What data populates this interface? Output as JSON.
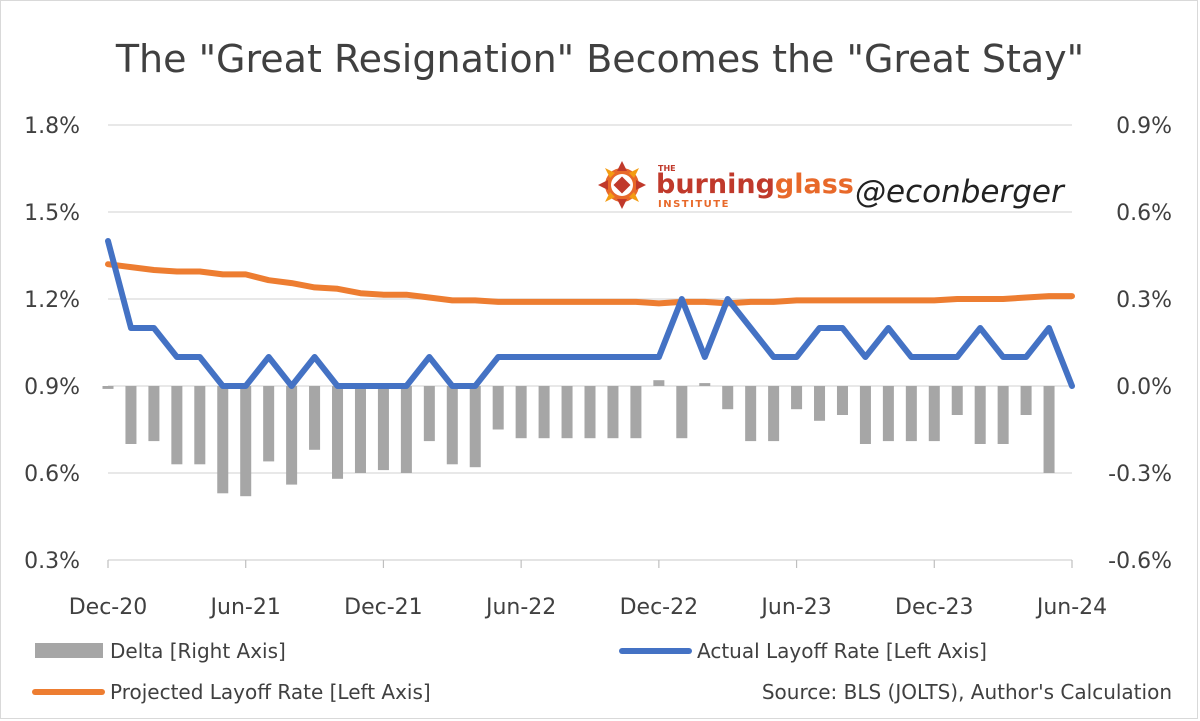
{
  "chart_data": {
    "type": "bar+line",
    "title": "The \"Great Resignation\" Becomes the \"Great Stay\"",
    "x_tick_labels": [
      "Dec-20",
      "Jun-21",
      "Dec-21",
      "Jun-22",
      "Dec-22",
      "Jun-23",
      "Dec-23",
      "Jun-24"
    ],
    "left_axis": {
      "ticks": [
        "0.3%",
        "0.6%",
        "0.9%",
        "1.2%",
        "1.5%",
        "1.8%"
      ],
      "ylim": [
        0.3,
        1.8
      ],
      "unit": "%"
    },
    "right_axis": {
      "ticks": [
        "-0.6%",
        "-0.3%",
        "0.0%",
        "0.3%",
        "0.6%",
        "0.9%"
      ],
      "ylim": [
        -0.6,
        0.9
      ],
      "unit": "%"
    },
    "x": [
      "Dec-20",
      "Jan-21",
      "Feb-21",
      "Mar-21",
      "Apr-21",
      "May-21",
      "Jun-21",
      "Jul-21",
      "Aug-21",
      "Sep-21",
      "Oct-21",
      "Nov-21",
      "Dec-21",
      "Jan-22",
      "Feb-22",
      "Mar-22",
      "Apr-22",
      "May-22",
      "Jun-22",
      "Jul-22",
      "Aug-22",
      "Sep-22",
      "Oct-22",
      "Nov-22",
      "Dec-22",
      "Jan-23",
      "Feb-23",
      "Mar-23",
      "Apr-23",
      "May-23",
      "Jun-23",
      "Jul-23",
      "Aug-23",
      "Sep-23",
      "Oct-23",
      "Nov-23",
      "Dec-23",
      "Jan-24",
      "Feb-24",
      "Mar-24",
      "Apr-24",
      "May-24",
      "Jun-24"
    ],
    "series": [
      {
        "name": "Delta [Right Axis]",
        "axis": "right",
        "type": "bar",
        "color": "#a6a6a6",
        "values": [
          -0.01,
          -0.2,
          -0.19,
          -0.27,
          -0.27,
          -0.37,
          -0.38,
          -0.26,
          -0.34,
          -0.22,
          -0.32,
          -0.3,
          -0.29,
          -0.3,
          -0.19,
          -0.27,
          -0.28,
          -0.15,
          -0.18,
          -0.18,
          -0.18,
          -0.18,
          -0.18,
          -0.18,
          0.02,
          -0.18,
          0.01,
          -0.08,
          -0.19,
          -0.19,
          -0.08,
          -0.12,
          -0.1,
          -0.2,
          -0.19,
          -0.19,
          -0.19,
          -0.1,
          -0.2,
          -0.2,
          -0.1,
          -0.3,
          0
        ]
      },
      {
        "name": "Actual Layoff Rate [Left Axis]",
        "axis": "left",
        "type": "line",
        "color": "#4472c4",
        "values": [
          1.4,
          1.1,
          1.1,
          1.0,
          1.0,
          0.9,
          0.9,
          1.0,
          0.9,
          1.0,
          0.9,
          0.9,
          0.9,
          0.9,
          1.0,
          0.9,
          0.9,
          1.0,
          1.0,
          1.0,
          1.0,
          1.0,
          1.0,
          1.0,
          1.0,
          1.2,
          1.0,
          1.2,
          1.1,
          1.0,
          1.0,
          1.1,
          1.1,
          1.0,
          1.1,
          1.0,
          1.0,
          1.0,
          1.1,
          1.0,
          1.0,
          1.1,
          0.9
        ]
      },
      {
        "name": "Projected Layoff Rate [Left Axis]",
        "axis": "left",
        "type": "line",
        "color": "#ed7d31",
        "values": [
          1.32,
          1.31,
          1.3,
          1.295,
          1.295,
          1.285,
          1.285,
          1.265,
          1.255,
          1.24,
          1.235,
          1.22,
          1.215,
          1.215,
          1.205,
          1.195,
          1.195,
          1.19,
          1.19,
          1.19,
          1.19,
          1.19,
          1.19,
          1.19,
          1.185,
          1.19,
          1.19,
          1.185,
          1.19,
          1.19,
          1.195,
          1.195,
          1.195,
          1.195,
          1.195,
          1.195,
          1.195,
          1.2,
          1.2,
          1.2,
          1.205,
          1.21,
          1.21
        ]
      }
    ],
    "legend": [
      {
        "label": "Delta [Right Axis]",
        "kind": "bar",
        "color": "#a6a6a6"
      },
      {
        "label": "Actual Layoff Rate [Left Axis]",
        "kind": "line",
        "color": "#4472c4"
      },
      {
        "label": "Projected Layoff Rate [Left Axis]",
        "kind": "line",
        "color": "#ed7d31"
      }
    ],
    "source": "Source: BLS (JOLTS), Author's Calculation",
    "watermark": {
      "logo_small": "THE",
      "logo_main_1": "burning",
      "logo_main_2": "glass",
      "logo_sub": "INSTITUTE",
      "handle": "@econberger"
    },
    "grid": true,
    "gridline_color": "#d9d9d9"
  }
}
